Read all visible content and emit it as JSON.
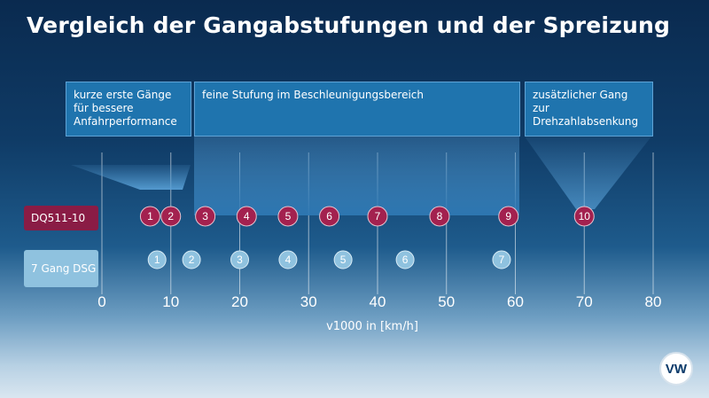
{
  "title": "Vergleich der Gangabstufungen und der Spreizung",
  "annotations": [
    {
      "text": "kurze erste Gänge für bessere Anfahrperformance"
    },
    {
      "text": "feine Stufung im Beschleunigungsbereich"
    },
    {
      "text": "zusätzlicher Gang zur Drehzahlabsenkung"
    }
  ],
  "colors": {
    "dq_marker": "#a3214f",
    "dsg_marker": "#8fc2df",
    "annotation": "#1f74ae"
  },
  "logo": "vw-logo",
  "chart_data": {
    "type": "scatter",
    "xlabel": "v1000 in [km/h]",
    "xlim": [
      0,
      80
    ],
    "x_ticks": [
      0,
      10,
      20,
      30,
      40,
      50,
      60,
      70,
      80
    ],
    "grid": true,
    "series": [
      {
        "name": "DQ511-10",
        "gears": [
          "1",
          "2",
          "3",
          "4",
          "5",
          "6",
          "7",
          "8",
          "9",
          "10"
        ],
        "x": [
          7,
          10,
          15,
          21,
          27,
          33,
          40,
          49,
          59,
          70
        ]
      },
      {
        "name": "7 Gang DSG",
        "gears": [
          "1",
          "2",
          "3",
          "4",
          "5",
          "6",
          "7"
        ],
        "x": [
          8,
          13,
          20,
          27,
          35,
          44,
          58
        ]
      }
    ]
  }
}
